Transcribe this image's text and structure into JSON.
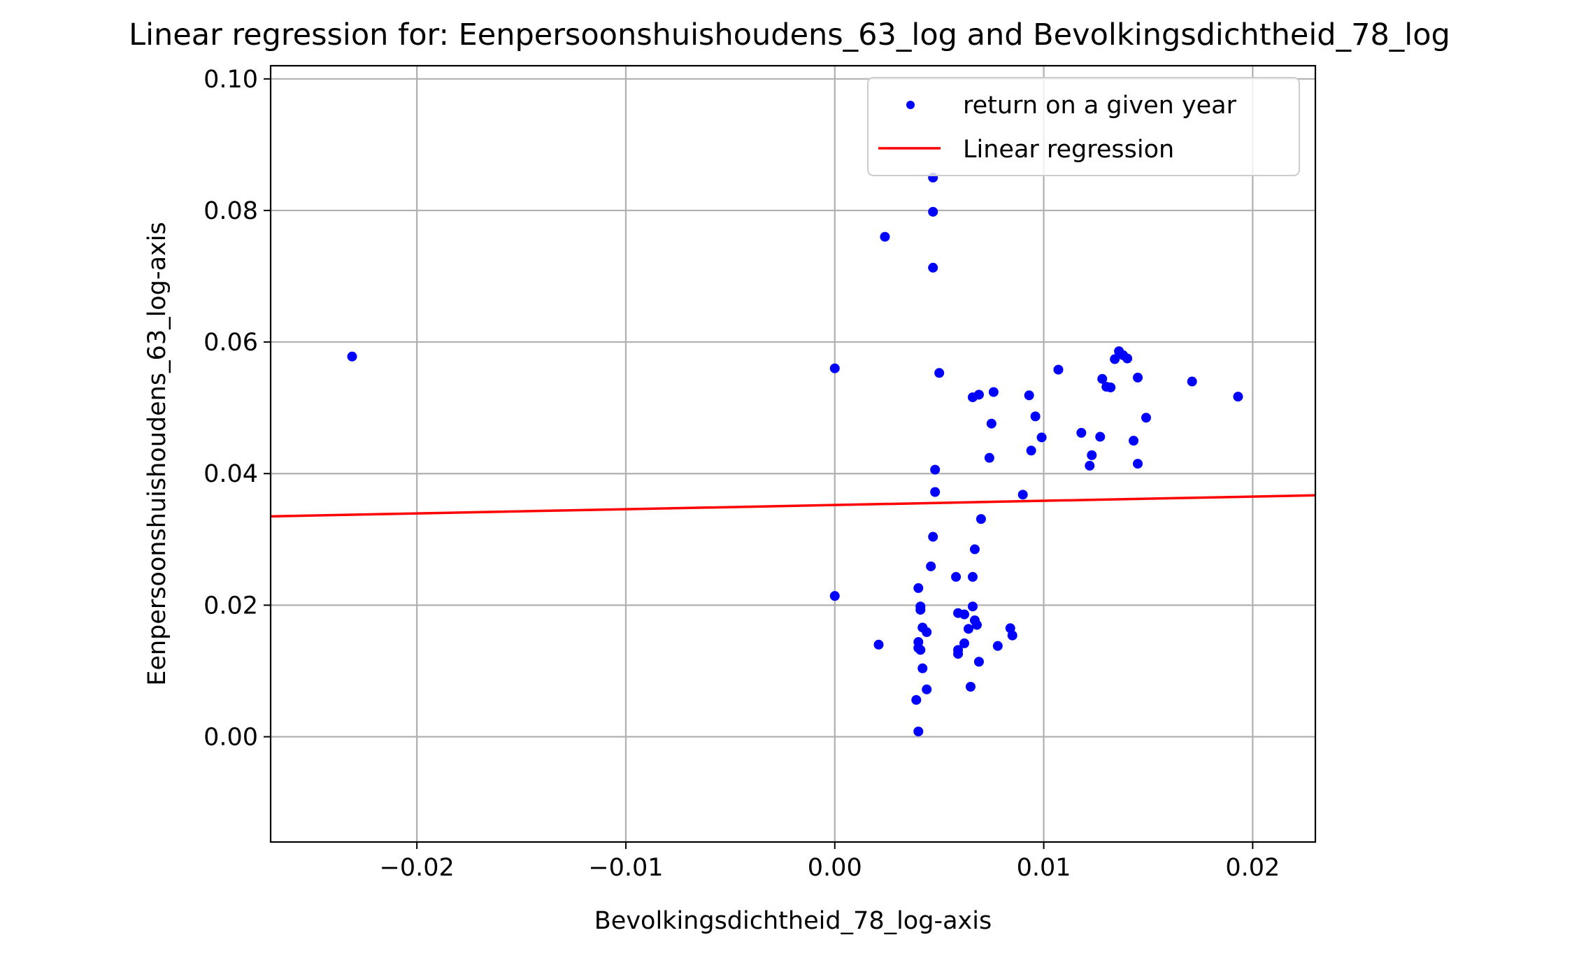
{
  "chart_data": {
    "type": "scatter",
    "title": "Linear regression for: Eenpersoonshuishoudens_63_log and Bevolkingsdichtheid_78_log",
    "xlabel": "Bevolkingsdichtheid_78_log-axis",
    "ylabel": "Eenpersoonshuishoudens_63_log-axis",
    "xlim": [
      -0.027,
      0.023
    ],
    "ylim": [
      -0.016,
      0.102
    ],
    "grid": true,
    "legend_position": "top-right",
    "x_ticks": [
      {
        "value": -0.02,
        "label": "−0.02"
      },
      {
        "value": -0.01,
        "label": "−0.01"
      },
      {
        "value": 0.0,
        "label": "0.00"
      },
      {
        "value": 0.01,
        "label": "0.01"
      },
      {
        "value": 0.02,
        "label": "0.02"
      }
    ],
    "y_ticks": [
      {
        "value": 0.0,
        "label": "0.00"
      },
      {
        "value": 0.02,
        "label": "0.02"
      },
      {
        "value": 0.04,
        "label": "0.04"
      },
      {
        "value": 0.06,
        "label": "0.06"
      },
      {
        "value": 0.08,
        "label": "0.08"
      },
      {
        "value": 0.1,
        "label": "0.10"
      }
    ],
    "series": [
      {
        "name": "return on a given year",
        "kind": "scatter",
        "color": "#0000ff",
        "points": [
          [
            -0.0231,
            0.0578
          ],
          [
            0.0,
            0.056
          ],
          [
            0.0,
            0.0214
          ],
          [
            0.0021,
            0.014
          ],
          [
            0.0024,
            0.076
          ],
          [
            0.0047,
            0.085
          ],
          [
            0.0047,
            0.0798
          ],
          [
            0.0047,
            0.0713
          ],
          [
            0.005,
            0.0553
          ],
          [
            0.0048,
            0.0406
          ],
          [
            0.0048,
            0.0372
          ],
          [
            0.0047,
            0.0304
          ],
          [
            0.0046,
            0.0259
          ],
          [
            0.004,
            0.0226
          ],
          [
            0.0041,
            0.0198
          ],
          [
            0.0041,
            0.0193
          ],
          [
            0.0042,
            0.0166
          ],
          [
            0.0044,
            0.0159
          ],
          [
            0.004,
            0.0144
          ],
          [
            0.004,
            0.0135
          ],
          [
            0.0041,
            0.0132
          ],
          [
            0.0042,
            0.0104
          ],
          [
            0.0044,
            0.0072
          ],
          [
            0.0039,
            0.0056
          ],
          [
            0.004,
            0.0008
          ],
          [
            0.0058,
            0.0243
          ],
          [
            0.0066,
            0.0243
          ],
          [
            0.0067,
            0.0285
          ],
          [
            0.007,
            0.0331
          ],
          [
            0.0059,
            0.0188
          ],
          [
            0.0062,
            0.0186
          ],
          [
            0.0066,
            0.0198
          ],
          [
            0.0067,
            0.0177
          ],
          [
            0.0068,
            0.017
          ],
          [
            0.0064,
            0.0164
          ],
          [
            0.0059,
            0.0132
          ],
          [
            0.0062,
            0.0142
          ],
          [
            0.0059,
            0.0126
          ],
          [
            0.0069,
            0.0114
          ],
          [
            0.0078,
            0.0138
          ],
          [
            0.0065,
            0.0076
          ],
          [
            0.0084,
            0.0165
          ],
          [
            0.0085,
            0.0154
          ],
          [
            0.0066,
            0.0516
          ],
          [
            0.0069,
            0.052
          ],
          [
            0.0076,
            0.0524
          ],
          [
            0.0075,
            0.0476
          ],
          [
            0.0074,
            0.0424
          ],
          [
            0.009,
            0.0368
          ],
          [
            0.0093,
            0.0519
          ],
          [
            0.0096,
            0.0487
          ],
          [
            0.0099,
            0.0455
          ],
          [
            0.0094,
            0.0435
          ],
          [
            0.0107,
            0.0558
          ],
          [
            0.0118,
            0.0462
          ],
          [
            0.0122,
            0.0412
          ],
          [
            0.0123,
            0.0428
          ],
          [
            0.0127,
            0.0456
          ],
          [
            0.0128,
            0.0544
          ],
          [
            0.013,
            0.0532
          ],
          [
            0.0132,
            0.0531
          ],
          [
            0.0134,
            0.0574
          ],
          [
            0.0136,
            0.0586
          ],
          [
            0.0138,
            0.058
          ],
          [
            0.014,
            0.0575
          ],
          [
            0.0143,
            0.045
          ],
          [
            0.0145,
            0.0415
          ],
          [
            0.0145,
            0.0546
          ],
          [
            0.0149,
            0.0485
          ],
          [
            0.0171,
            0.054
          ],
          [
            0.0193,
            0.0517
          ]
        ]
      },
      {
        "name": "Linear regression",
        "kind": "line",
        "color": "#ff0000",
        "x": [
          -0.027,
          0.023
        ],
        "y": [
          0.0335,
          0.0367
        ]
      }
    ]
  }
}
